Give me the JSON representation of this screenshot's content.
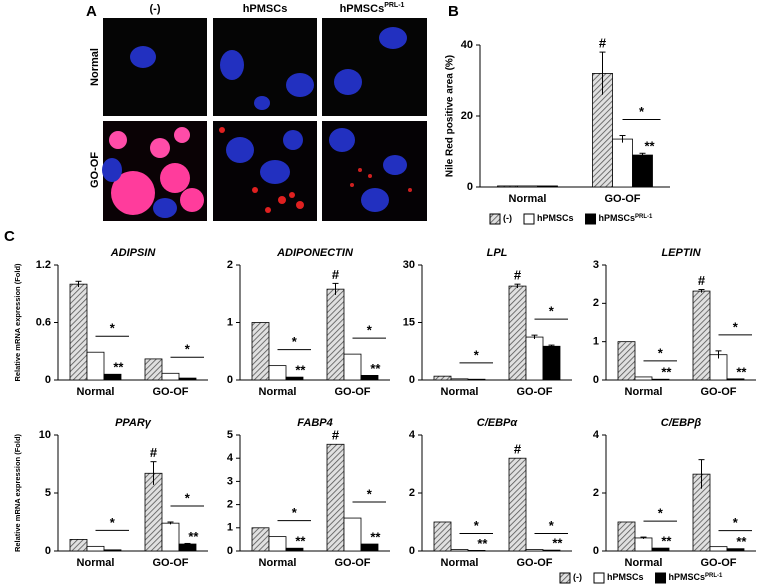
{
  "panel_labels": {
    "a": "A",
    "b": "B",
    "c": "C"
  },
  "panel_a": {
    "columns": [
      {
        "text": "(-)"
      },
      {
        "text": "hPMSCs"
      },
      {
        "text": "hPMSCs",
        "sup": "PRL-1"
      }
    ],
    "rows": [
      "Normal",
      "GO-OF"
    ]
  },
  "chart_data": [
    {
      "type": "bar",
      "ylabel": "Nile Red positive area (%)",
      "categories": [
        "Normal",
        "GO-OF"
      ],
      "ylim": [
        0,
        40
      ],
      "yticks": [
        0,
        20,
        40
      ],
      "legend": "below",
      "series": [
        {
          "name": "(-)",
          "color": "#a6a6a6",
          "pattern": "hatch",
          "values": [
            0.3,
            32
          ],
          "errors": [
            null,
            6
          ],
          "flags": [
            null,
            "#"
          ]
        },
        {
          "name": "hPMSCs",
          "color": "#ffffff",
          "values": [
            0.3,
            13.5
          ],
          "errors": [
            null,
            1
          ],
          "flags": [
            null,
            null
          ]
        },
        {
          "name": "hPMSCs",
          "name_sup": "PRL-1",
          "color": "#000000",
          "values": [
            0.3,
            9
          ],
          "errors": [
            null,
            0.5
          ],
          "flags": [
            null,
            "**"
          ]
        }
      ],
      "brackets": [
        null,
        "*"
      ]
    },
    {
      "type": "bar",
      "title": "ADIPSIN",
      "ylabel": "Relative mRNA expression (Fold)",
      "categories": [
        "Normal",
        "GO-OF"
      ],
      "ylim": [
        0,
        1.2
      ],
      "yticks": [
        0,
        0.6,
        1.2
      ],
      "series": [
        {
          "color": "#a6a6a6",
          "pattern": "hatch",
          "values": [
            1.0,
            0.22
          ],
          "errors": [
            0.03,
            null
          ],
          "flags": [
            null,
            null
          ]
        },
        {
          "color": "#ffffff",
          "values": [
            0.29,
            0.07
          ],
          "errors": [
            null,
            null
          ],
          "flags": [
            null,
            null
          ]
        },
        {
          "color": "#000000",
          "values": [
            0.06,
            0.02
          ],
          "errors": [
            null,
            null
          ],
          "flags": [
            "**",
            null
          ]
        }
      ],
      "brackets": [
        "*",
        "*"
      ]
    },
    {
      "type": "bar",
      "title": "ADIPONECTIN",
      "categories": [
        "Normal",
        "GO-OF"
      ],
      "ylim": [
        0,
        2
      ],
      "yticks": [
        0,
        1,
        2
      ],
      "series": [
        {
          "color": "#a6a6a6",
          "pattern": "hatch",
          "values": [
            1.0,
            1.58
          ],
          "errors": [
            null,
            0.1
          ],
          "flags": [
            null,
            "#"
          ]
        },
        {
          "color": "#ffffff",
          "values": [
            0.25,
            0.45
          ],
          "errors": [
            null,
            null
          ],
          "flags": [
            null,
            null
          ]
        },
        {
          "color": "#000000",
          "values": [
            0.05,
            0.08
          ],
          "errors": [
            null,
            null
          ],
          "flags": [
            "**",
            "**"
          ]
        }
      ],
      "brackets": [
        "*",
        "*"
      ]
    },
    {
      "type": "bar",
      "title": "LPL",
      "categories": [
        "Normal",
        "GO-OF"
      ],
      "ylim": [
        0,
        30
      ],
      "yticks": [
        0,
        15,
        30
      ],
      "series": [
        {
          "color": "#a6a6a6",
          "pattern": "hatch",
          "values": [
            1.0,
            24.5
          ],
          "errors": [
            null,
            0.5
          ],
          "flags": [
            null,
            "#"
          ]
        },
        {
          "color": "#ffffff",
          "values": [
            0.3,
            11.2
          ],
          "errors": [
            null,
            0.5
          ],
          "flags": [
            null,
            null
          ]
        },
        {
          "color": "#000000",
          "values": [
            0.2,
            8.8
          ],
          "errors": [
            null,
            0.3
          ],
          "flags": [
            null,
            null
          ]
        }
      ],
      "brackets": [
        "*",
        "*"
      ]
    },
    {
      "type": "bar",
      "title": "LEPTIN",
      "categories": [
        "Normal",
        "GO-OF"
      ],
      "ylim": [
        0,
        3
      ],
      "yticks": [
        0,
        1,
        2,
        3
      ],
      "series": [
        {
          "color": "#a6a6a6",
          "pattern": "hatch",
          "values": [
            1.0,
            2.32
          ],
          "errors": [
            null,
            0.04
          ],
          "flags": [
            null,
            "#"
          ]
        },
        {
          "color": "#ffffff",
          "values": [
            0.08,
            0.66
          ],
          "errors": [
            null,
            0.1
          ],
          "flags": [
            null,
            null
          ]
        },
        {
          "color": "#000000",
          "values": [
            0.02,
            0.03
          ],
          "errors": [
            null,
            null
          ],
          "flags": [
            "**",
            "**"
          ]
        }
      ],
      "brackets": [
        "*",
        "*"
      ]
    },
    {
      "type": "bar",
      "title": "PPARγ",
      "ylabel": "Relative mRNA expression (Fold)",
      "categories": [
        "Normal",
        "GO-OF"
      ],
      "ylim": [
        0,
        10
      ],
      "yticks": [
        0,
        5,
        10
      ],
      "series": [
        {
          "color": "#a6a6a6",
          "pattern": "hatch",
          "values": [
            1.0,
            6.7
          ],
          "errors": [
            null,
            1.0
          ],
          "flags": [
            null,
            "#"
          ]
        },
        {
          "color": "#ffffff",
          "values": [
            0.4,
            2.4
          ],
          "errors": [
            null,
            0.1
          ],
          "flags": [
            null,
            null
          ]
        },
        {
          "color": "#000000",
          "values": [
            0.1,
            0.6
          ],
          "errors": [
            null,
            0.05
          ],
          "flags": [
            null,
            "**"
          ]
        }
      ],
      "brackets": [
        "*",
        "*"
      ]
    },
    {
      "type": "bar",
      "title": "FABP4",
      "categories": [
        "Normal",
        "GO-OF"
      ],
      "ylim": [
        0,
        5
      ],
      "yticks": [
        0,
        1,
        2,
        3,
        4,
        5
      ],
      "series": [
        {
          "color": "#a6a6a6",
          "pattern": "hatch",
          "values": [
            1.0,
            4.6
          ],
          "errors": [
            null,
            null
          ],
          "flags": [
            null,
            "#"
          ]
        },
        {
          "color": "#ffffff",
          "values": [
            0.62,
            1.42
          ],
          "errors": [
            null,
            null
          ],
          "flags": [
            null,
            null
          ]
        },
        {
          "color": "#000000",
          "values": [
            0.12,
            0.3
          ],
          "errors": [
            null,
            null
          ],
          "flags": [
            "**",
            "**"
          ]
        }
      ],
      "brackets": [
        "*",
        "*"
      ]
    },
    {
      "type": "bar",
      "title": "C/EBPα",
      "categories": [
        "Normal",
        "GO-OF"
      ],
      "ylim": [
        0,
        4
      ],
      "yticks": [
        0,
        2,
        4
      ],
      "series": [
        {
          "color": "#a6a6a6",
          "pattern": "hatch",
          "values": [
            1.0,
            3.2
          ],
          "errors": [
            null,
            null
          ],
          "flags": [
            null,
            "#"
          ]
        },
        {
          "color": "#ffffff",
          "values": [
            0.05,
            0.05
          ],
          "errors": [
            null,
            null
          ],
          "flags": [
            null,
            null
          ]
        },
        {
          "color": "#000000",
          "values": [
            0.02,
            0.03
          ],
          "errors": [
            null,
            null
          ],
          "flags": [
            "**",
            "**"
          ]
        }
      ],
      "brackets": [
        "*",
        "*"
      ]
    },
    {
      "type": "bar",
      "title": "C/EBPβ",
      "categories": [
        "Normal",
        "GO-OF"
      ],
      "ylim": [
        0,
        4
      ],
      "yticks": [
        0,
        2,
        4
      ],
      "legend": "bottom-right",
      "series": [
        {
          "name": "(-)",
          "color": "#a6a6a6",
          "pattern": "hatch",
          "values": [
            1.0,
            2.65
          ],
          "errors": [
            null,
            0.5
          ],
          "flags": [
            null,
            null
          ]
        },
        {
          "name": "hPMSCs",
          "color": "#ffffff",
          "values": [
            0.45,
            0.15
          ],
          "errors": [
            0.03,
            null
          ],
          "flags": [
            null,
            null
          ]
        },
        {
          "name": "hPMSCs",
          "name_sup": "PRL-1",
          "color": "#000000",
          "values": [
            0.1,
            0.08
          ],
          "errors": [
            null,
            null
          ],
          "flags": [
            "**",
            "**"
          ]
        }
      ],
      "brackets": [
        "*",
        "*"
      ]
    }
  ]
}
